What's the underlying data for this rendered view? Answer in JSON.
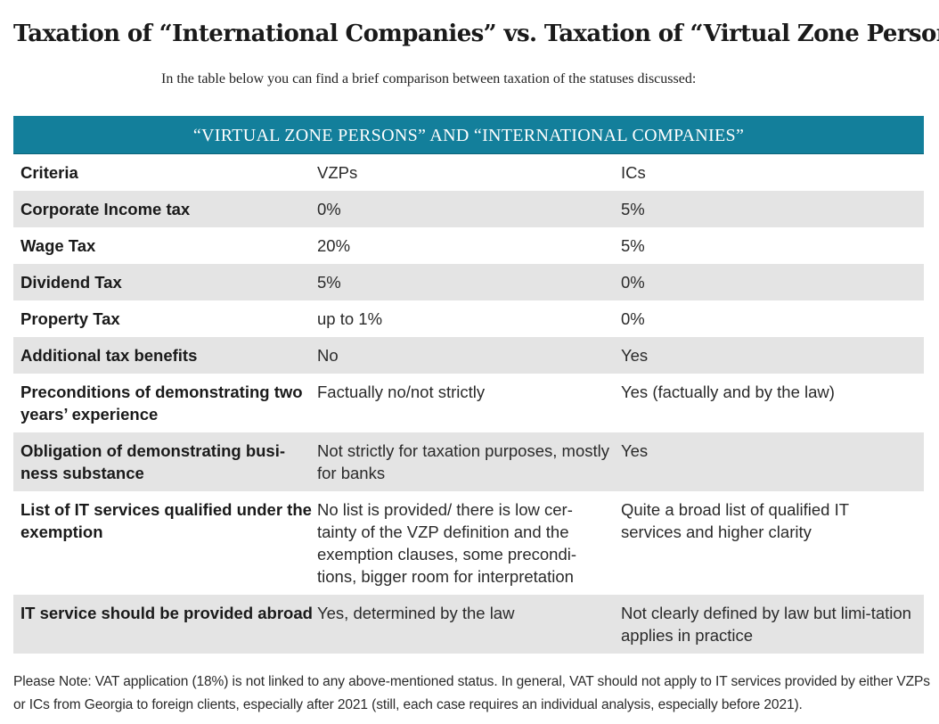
{
  "title": "Taxation of “International Companies” vs. Taxation of “Virtual Zone Persons”",
  "intro": "In the table below you can find a brief comparison between taxation of the statuses discussed:",
  "table": {
    "header": "“VIRTUAL ZONE PERSONS” AND “INTERNATIONAL COMPANIES”",
    "rows": [
      {
        "criteria": "Criteria",
        "vzp": "VZPs",
        "ic": "ICs"
      },
      {
        "criteria": "Corporate Income tax",
        "vzp": "0%",
        "ic": "5%"
      },
      {
        "criteria": "Wage Tax",
        "vzp": "20%",
        "ic": "5%"
      },
      {
        "criteria": "Dividend Tax",
        "vzp": "5%",
        "ic": "0%"
      },
      {
        "criteria": "Property Tax",
        "vzp": "up to 1%",
        "ic": "0%"
      },
      {
        "criteria": "Additional tax benefits",
        "vzp": "No",
        "ic": "Yes"
      },
      {
        "criteria": "Preconditions of demonstrating two years’ experience",
        "vzp": "Factually no/not strictly",
        "ic": "Yes (factually and by the law)"
      },
      {
        "criteria": "Obligation of demonstrating busi-ness substance",
        "vzp": "Not strictly for taxation purposes, mostly for banks",
        "ic": "Yes"
      },
      {
        "criteria": "List of IT services qualified under the exemption",
        "vzp": "No list is provided/ there is low cer-tainty of the VZP definition and the exemption clauses, some precondi-tions, bigger room for interpretation",
        "ic": "Quite a broad list of qualified IT services and higher clarity"
      },
      {
        "criteria": "IT service should be provided abroad",
        "vzp": "Yes, determined by the law",
        "ic": "Not clearly defined by law but limi-tation applies in practice"
      }
    ]
  },
  "note": "Please Note: VAT application (18%) is not linked to any above-mentioned status. In general, VAT should not apply to IT services provided by either VZPs or ICs from Georgia to foreign clients, especially after 2021 (still, each case requires an individual analysis, especially before 2021).",
  "colors": {
    "header_bg": "#137f9b",
    "row_shade": "#e4e4e4"
  }
}
